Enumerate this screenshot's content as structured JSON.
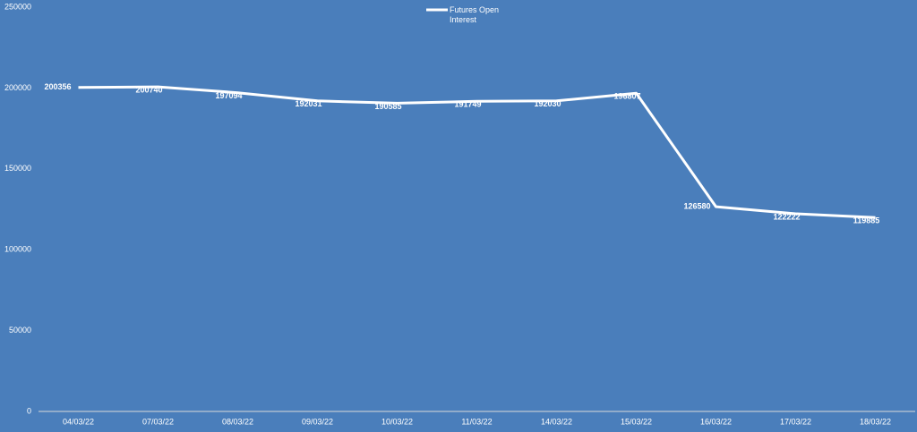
{
  "chart_data": {
    "type": "line",
    "categories": [
      "04/03/22",
      "07/03/22",
      "08/03/22",
      "09/03/22",
      "10/03/22",
      "11/03/22",
      "14/03/22",
      "15/03/22",
      "16/03/22",
      "17/03/22",
      "18/03/22"
    ],
    "series": [
      {
        "name": "Futures Open Interest",
        "color": "#ffffff",
        "values": [
          200356,
          200740,
          197094,
          192031,
          190585,
          191749,
          192030,
          196807,
          126580,
          122222,
          119885
        ]
      }
    ],
    "ylim": [
      0,
      250000
    ],
    "yticks": [
      0,
      50000,
      100000,
      150000,
      200000,
      250000
    ],
    "drop_lines": true,
    "legend": "top"
  }
}
